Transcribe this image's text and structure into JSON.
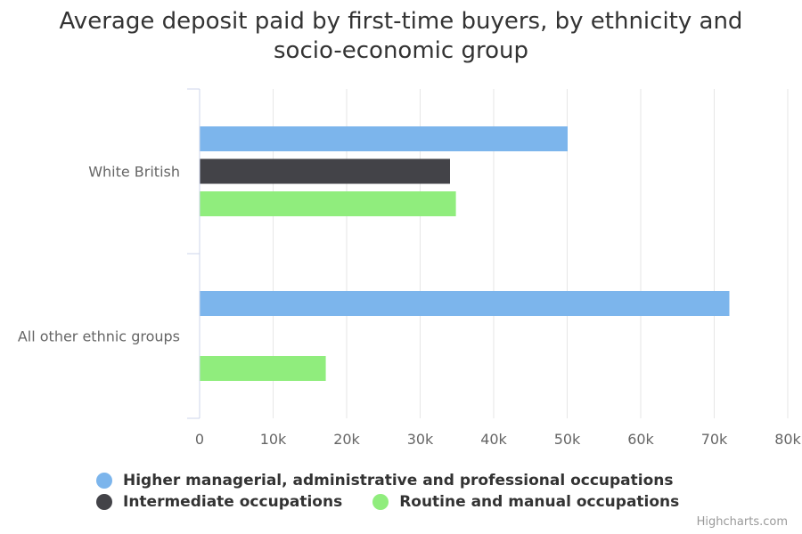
{
  "chart_data": {
    "type": "bar",
    "orientation": "horizontal",
    "title": "Average deposit paid by first-time buyers, by ethnicity and socio-economic group",
    "categories": [
      "White British",
      "All other ethnic groups"
    ],
    "series": [
      {
        "name": "Higher managerial, administrative and professional occupations",
        "color": "#7cb5ec",
        "values": [
          50000,
          72000
        ]
      },
      {
        "name": "Intermediate occupations",
        "color": "#434348",
        "values": [
          34000,
          null
        ]
      },
      {
        "name": "Routine and manual occupations",
        "color": "#90ed7d",
        "values": [
          34800,
          17100
        ]
      }
    ],
    "xlim": [
      0,
      80000
    ],
    "xticks": [
      "0",
      "10k",
      "20k",
      "30k",
      "40k",
      "50k",
      "60k",
      "70k",
      "80k"
    ],
    "grid": true,
    "legend_position": "bottom"
  },
  "credits": "Highcharts.com"
}
